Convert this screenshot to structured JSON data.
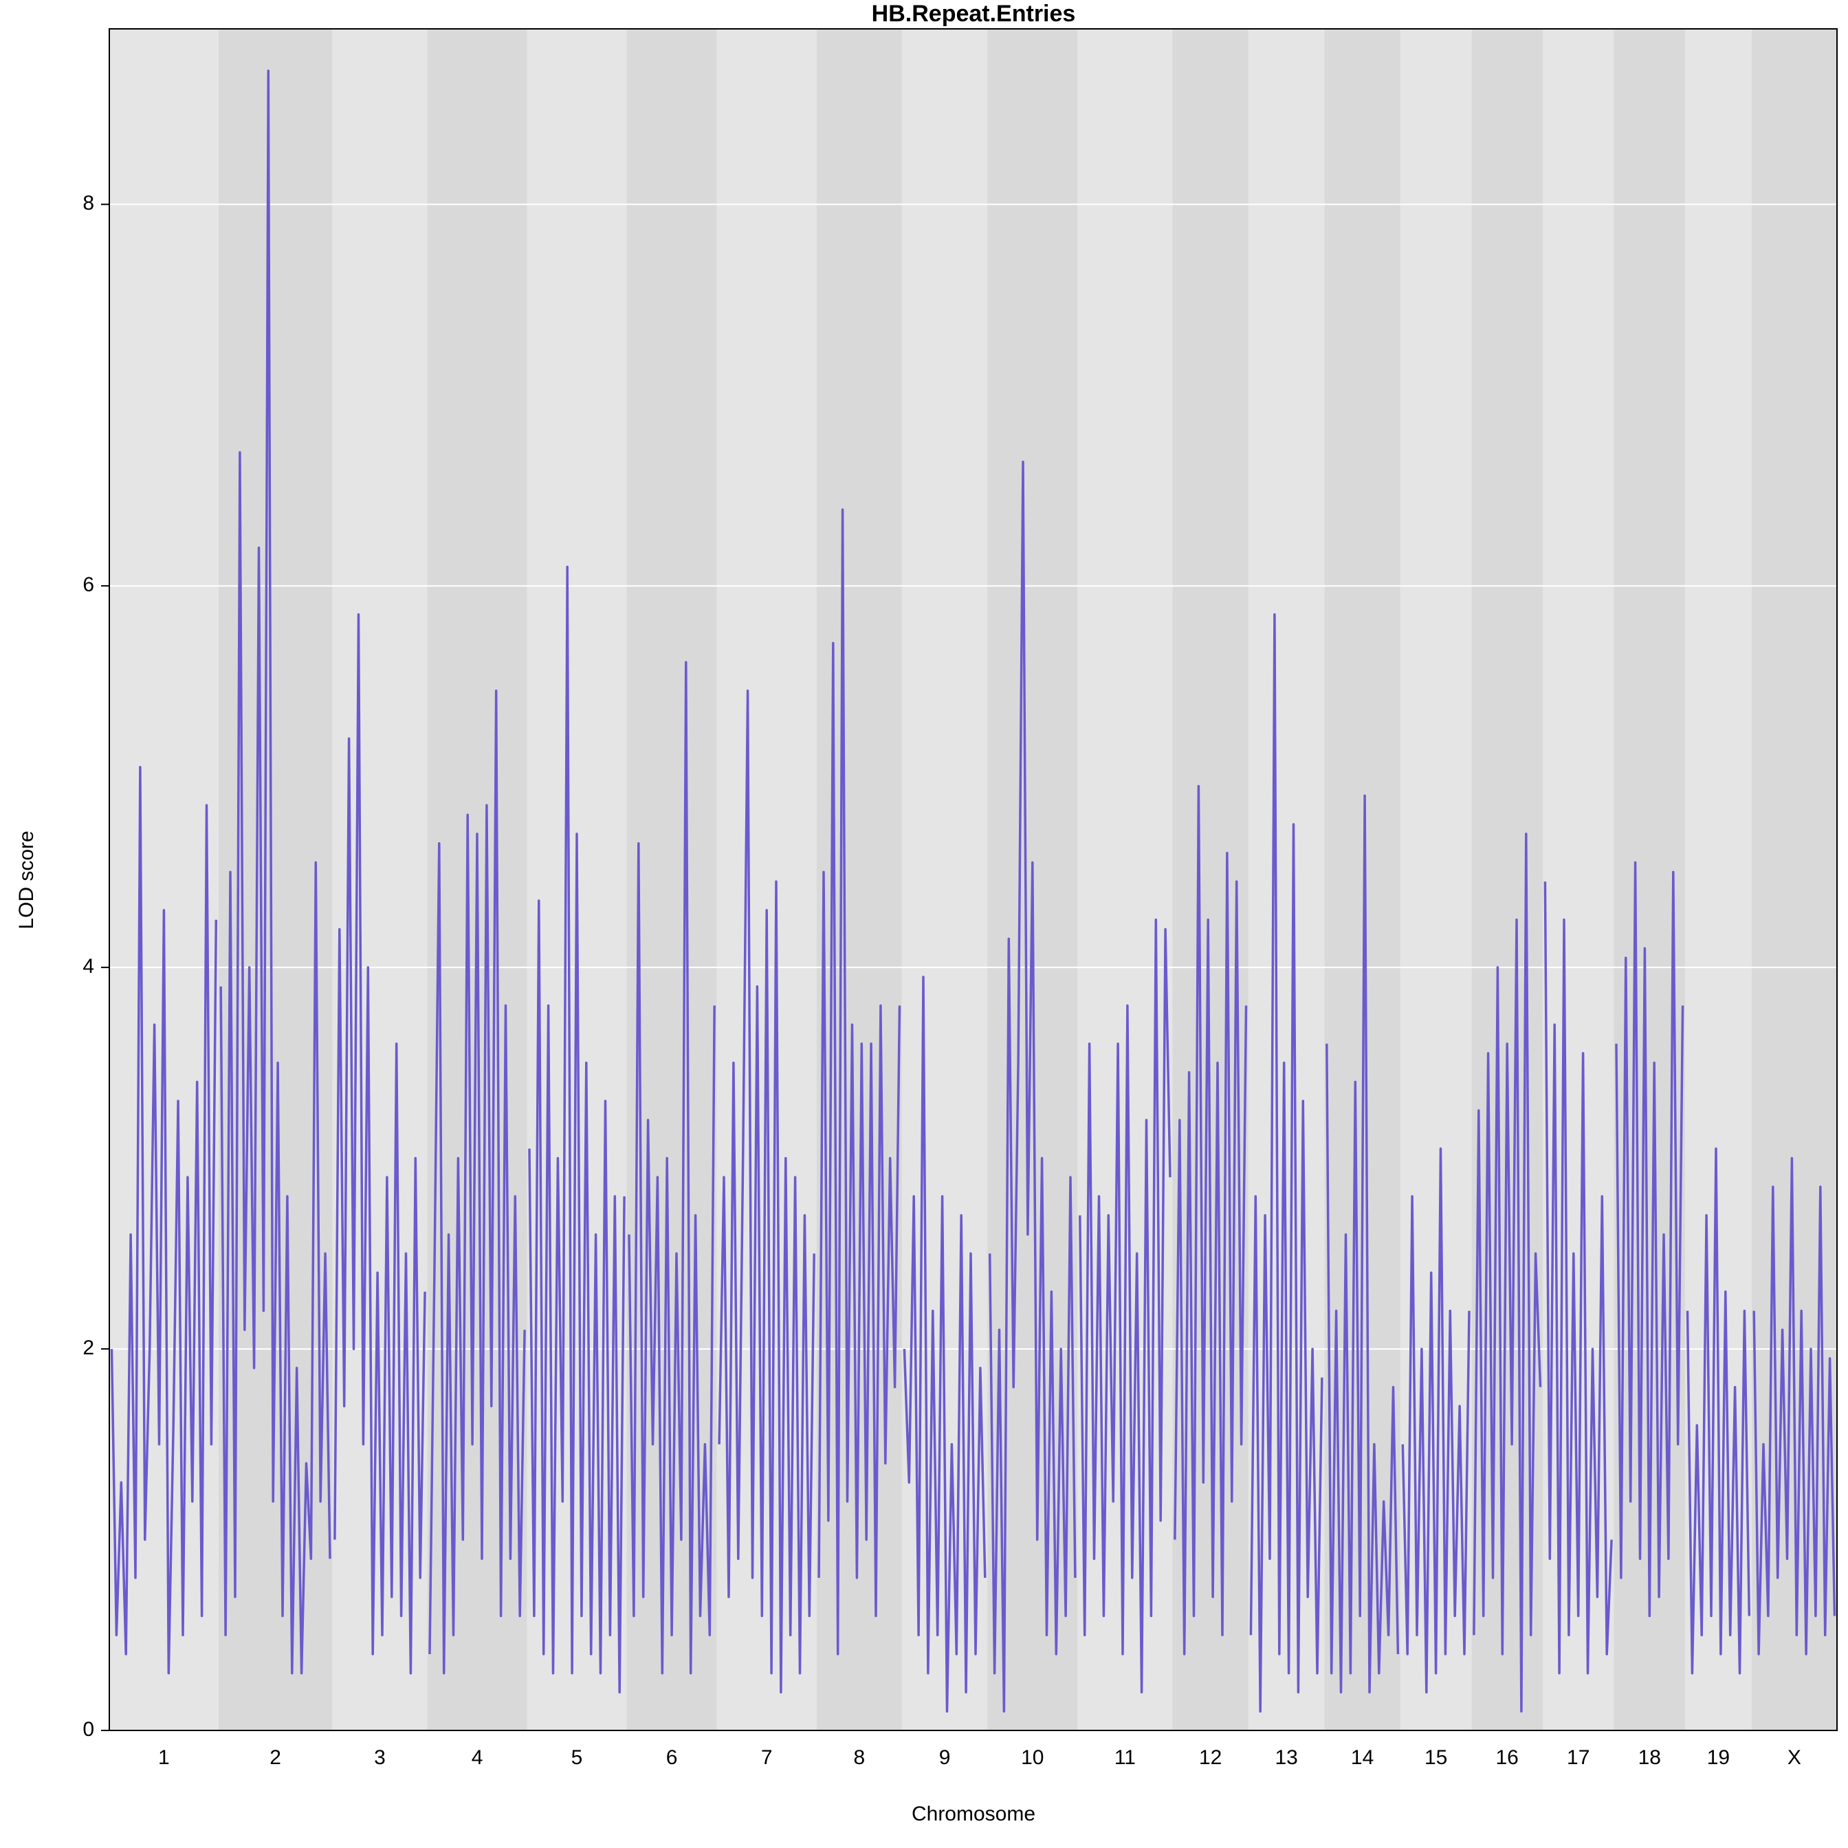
{
  "chart_data": {
    "type": "line",
    "title": "HB.Repeat.Entries",
    "x_label": "Chromosome",
    "y_label": "LOD score",
    "color": "#6a5acd",
    "band_colors": [
      "#e5e5e5",
      "#d9d9d9"
    ],
    "grid": true,
    "ylim": [
      0,
      8.92
    ],
    "yticks": [
      0,
      2,
      4,
      6,
      8
    ],
    "series": [
      {
        "name": "1",
        "values": [
          2.0,
          0.5,
          1.3,
          0.4,
          2.6,
          0.8,
          5.05,
          1.0,
          2.0,
          3.7,
          1.5,
          4.3,
          0.3,
          1.6,
          3.3,
          0.5,
          2.9,
          1.2,
          3.4,
          0.6,
          4.85,
          1.5,
          4.25
        ]
      },
      {
        "name": "2",
        "values": [
          3.9,
          0.5,
          4.5,
          0.7,
          6.7,
          2.1,
          4.0,
          1.9,
          6.2,
          2.2,
          8.7,
          1.2,
          3.5,
          0.6,
          2.8,
          0.3,
          1.9,
          0.3,
          1.4,
          0.9,
          4.55,
          1.2,
          2.5,
          0.9
        ]
      },
      {
        "name": "3",
        "values": [
          1.0,
          4.2,
          1.7,
          5.2,
          2.0,
          5.85,
          1.5,
          4.0,
          0.4,
          2.4,
          0.5,
          2.9,
          0.7,
          3.6,
          0.6,
          2.5,
          0.3,
          3.0,
          0.8,
          2.3
        ]
      },
      {
        "name": "4",
        "values": [
          0.4,
          2.4,
          4.65,
          0.3,
          2.6,
          0.5,
          3.0,
          1.0,
          4.8,
          1.5,
          4.7,
          0.9,
          4.85,
          1.7,
          5.45,
          0.6,
          3.8,
          0.9,
          2.8,
          0.6,
          2.1
        ]
      },
      {
        "name": "5",
        "values": [
          3.05,
          0.6,
          4.35,
          0.4,
          3.8,
          0.3,
          3.0,
          1.2,
          6.1,
          0.3,
          4.7,
          0.6,
          3.5,
          0.4,
          2.6,
          0.3,
          3.3,
          0.5,
          2.8,
          0.2,
          2.8
        ]
      },
      {
        "name": "6",
        "values": [
          2.6,
          0.6,
          4.65,
          0.7,
          3.2,
          1.5,
          2.9,
          0.3,
          3.0,
          0.5,
          2.5,
          1.0,
          5.6,
          0.3,
          2.7,
          0.6,
          1.5,
          0.5,
          3.8
        ]
      },
      {
        "name": "7",
        "values": [
          1.5,
          2.9,
          0.7,
          3.5,
          0.9,
          3.0,
          5.45,
          0.8,
          3.9,
          0.6,
          4.3,
          0.3,
          4.45,
          0.2,
          3.0,
          0.5,
          2.9,
          0.3,
          2.7,
          0.6,
          2.5
        ]
      },
      {
        "name": "8",
        "values": [
          0.8,
          4.5,
          1.1,
          5.7,
          0.4,
          6.4,
          1.2,
          3.7,
          0.8,
          3.6,
          1.0,
          3.6,
          0.6,
          3.8,
          1.4,
          3.0,
          1.8,
          3.8
        ]
      },
      {
        "name": "9",
        "values": [
          2.0,
          1.3,
          2.8,
          0.5,
          3.95,
          0.3,
          2.2,
          0.5,
          2.8,
          0.1,
          1.5,
          0.4,
          2.7,
          0.2,
          2.5,
          0.4,
          1.9,
          0.8
        ]
      },
      {
        "name": "10",
        "values": [
          2.5,
          0.3,
          2.1,
          0.1,
          4.15,
          1.8,
          3.5,
          6.65,
          2.6,
          4.55,
          1.0,
          3.0,
          0.5,
          2.3,
          0.4,
          2.0,
          0.6,
          2.9,
          0.8
        ]
      },
      {
        "name": "11",
        "values": [
          2.7,
          0.5,
          3.6,
          0.9,
          2.8,
          0.6,
          2.7,
          1.2,
          3.6,
          0.4,
          3.8,
          0.8,
          2.5,
          0.2,
          3.2,
          0.6,
          4.25,
          1.1,
          4.2,
          2.9
        ]
      },
      {
        "name": "12",
        "values": [
          1.0,
          3.2,
          0.4,
          3.45,
          0.6,
          4.95,
          1.3,
          4.25,
          0.7,
          3.5,
          0.5,
          4.6,
          1.2,
          4.45,
          1.5,
          3.8
        ]
      },
      {
        "name": "13",
        "values": [
          0.5,
          2.8,
          0.1,
          2.7,
          0.9,
          5.85,
          0.4,
          3.5,
          0.3,
          4.75,
          0.2,
          3.3,
          0.7,
          2.0,
          0.3,
          1.85
        ]
      },
      {
        "name": "14",
        "values": [
          3.6,
          0.3,
          2.2,
          0.2,
          2.6,
          0.3,
          3.4,
          0.6,
          4.9,
          0.2,
          1.5,
          0.3,
          1.2,
          0.5,
          1.8,
          0.4
        ]
      },
      {
        "name": "15",
        "values": [
          1.5,
          0.4,
          2.8,
          0.5,
          2.0,
          0.2,
          2.4,
          0.3,
          3.05,
          0.4,
          2.2,
          0.6,
          1.7,
          0.4,
          2.2
        ]
      },
      {
        "name": "16",
        "values": [
          0.5,
          3.25,
          0.6,
          3.55,
          0.8,
          4.0,
          0.4,
          3.6,
          1.5,
          4.25,
          0.1,
          4.7,
          0.5,
          2.5,
          1.8
        ]
      },
      {
        "name": "17",
        "values": [
          4.45,
          0.9,
          3.7,
          0.3,
          4.25,
          0.5,
          2.5,
          0.6,
          3.55,
          0.3,
          2.0,
          0.7,
          2.8,
          0.4,
          1.0
        ]
      },
      {
        "name": "18",
        "values": [
          3.6,
          0.8,
          4.05,
          1.2,
          4.55,
          0.9,
          4.1,
          0.6,
          3.5,
          0.7,
          2.6,
          0.9,
          4.5,
          1.5,
          3.8
        ]
      },
      {
        "name": "19",
        "values": [
          2.2,
          0.3,
          1.6,
          0.5,
          2.7,
          0.6,
          3.05,
          0.4,
          2.3,
          0.5,
          1.8,
          0.3,
          2.2,
          0.6
        ]
      },
      {
        "name": "X",
        "values": [
          2.2,
          0.4,
          1.5,
          0.6,
          2.85,
          0.8,
          2.1,
          0.9,
          3.0,
          0.5,
          2.2,
          0.4,
          2.0,
          0.6,
          2.85,
          0.5,
          1.95,
          0.6
        ]
      }
    ]
  }
}
